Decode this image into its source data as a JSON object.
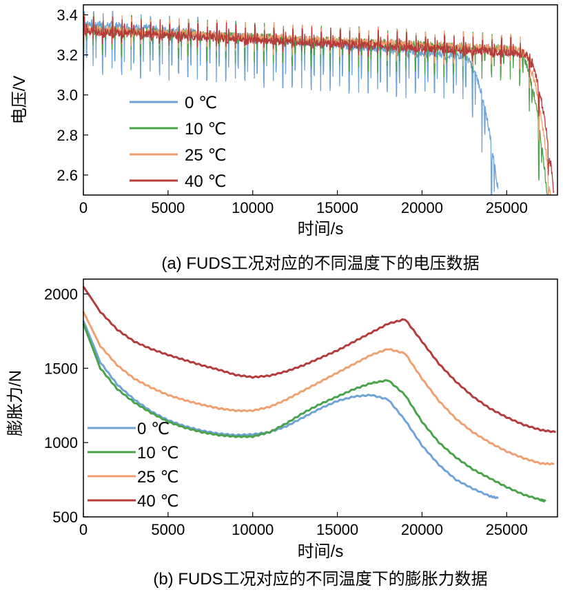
{
  "colors": {
    "s0": "#6fa2d6",
    "s10": "#4aa34a",
    "s25": "#f0a070",
    "s40": "#b53a3a"
  },
  "chart_data": [
    {
      "type": "line",
      "caption": "(a) FUDS工况对应的不同温度下的电压数据",
      "xlabel": "时间/s",
      "ylabel": "电压/V",
      "xlim": [
        0,
        28000
      ],
      "ylim": [
        2.5,
        3.45
      ],
      "xticks": [
        "0",
        "5000",
        "10000",
        "15000",
        "20000",
        "25000"
      ],
      "yticks": [
        "2.6",
        "2.8",
        "3.0",
        "3.2",
        "3.4"
      ],
      "xtick_values": [
        0,
        5000,
        10000,
        15000,
        20000,
        25000
      ],
      "ytick_values": [
        2.6,
        2.8,
        3.0,
        3.2,
        3.4
      ],
      "legend_position": "left",
      "series": [
        {
          "name": "0 ℃",
          "color_key": "s0",
          "end_time": 24500,
          "base_start": 3.36,
          "base_end": 3.18,
          "dip_start": 3.1,
          "dip_end": 2.95,
          "final_drop": 2.52
        },
        {
          "name": "10 ℃",
          "color_key": "s10",
          "end_time": 27400,
          "base_start": 3.33,
          "base_end": 3.22,
          "dip_start": 3.2,
          "dip_end": 3.05,
          "final_drop": 2.5
        },
        {
          "name": "25 ℃",
          "color_key": "s25",
          "end_time": 27600,
          "base_start": 3.33,
          "base_end": 3.22,
          "dip_start": 3.25,
          "dip_end": 3.12,
          "final_drop": 2.5
        },
        {
          "name": "40 ℃",
          "color_key": "s40",
          "end_time": 27800,
          "base_start": 3.32,
          "base_end": 3.2,
          "dip_start": 3.26,
          "dip_end": 3.14,
          "final_drop": 2.5
        }
      ]
    },
    {
      "type": "line",
      "caption": "(b) FUDS工况对应的不同温度下的膨胀力数据",
      "xlabel": "时间/s",
      "ylabel": "膨胀力/N",
      "xlim": [
        0,
        28000
      ],
      "ylim": [
        500,
        2100
      ],
      "xticks": [
        "0",
        "5000",
        "10000",
        "15000",
        "20000",
        "25000"
      ],
      "yticks": [
        "500",
        "1000",
        "1500",
        "2000"
      ],
      "xtick_values": [
        0,
        5000,
        10000,
        15000,
        20000,
        25000
      ],
      "ytick_values": [
        500,
        1000,
        1500,
        2000
      ],
      "legend_position": "bottom-left",
      "series": [
        {
          "name": "0 ℃",
          "color_key": "s0",
          "x": [
            0,
            1000,
            2000,
            3000,
            4000,
            5000,
            6000,
            7000,
            8000,
            9000,
            10000,
            11000,
            12000,
            13000,
            14000,
            15000,
            16000,
            17000,
            18000,
            19000,
            20000,
            21000,
            22000,
            23000,
            24000,
            24500
          ],
          "y": [
            1820,
            1540,
            1390,
            1290,
            1210,
            1150,
            1110,
            1080,
            1060,
            1050,
            1055,
            1070,
            1110,
            1170,
            1230,
            1280,
            1310,
            1320,
            1290,
            1150,
            980,
            850,
            750,
            690,
            640,
            625
          ]
        },
        {
          "name": "10 ℃",
          "color_key": "s10",
          "x": [
            0,
            1000,
            2000,
            3000,
            4000,
            5000,
            6000,
            7000,
            8000,
            9000,
            10000,
            11000,
            12000,
            13000,
            14000,
            15000,
            16000,
            17000,
            18000,
            19000,
            20000,
            21000,
            22000,
            23000,
            24000,
            25000,
            26000,
            27000,
            27300
          ],
          "y": [
            1800,
            1500,
            1360,
            1270,
            1200,
            1140,
            1100,
            1070,
            1050,
            1040,
            1040,
            1070,
            1130,
            1200,
            1260,
            1310,
            1360,
            1400,
            1420,
            1320,
            1140,
            1000,
            900,
            820,
            760,
            700,
            650,
            615,
            605
          ]
        },
        {
          "name": "25 ℃",
          "color_key": "s25",
          "x": [
            0,
            1000,
            2000,
            3000,
            4000,
            5000,
            6000,
            7000,
            8000,
            9000,
            10000,
            11000,
            12000,
            13000,
            14000,
            15000,
            16000,
            17000,
            18000,
            19000,
            20000,
            21000,
            22000,
            23000,
            24000,
            25000,
            26000,
            27000,
            27800
          ],
          "y": [
            1880,
            1650,
            1520,
            1430,
            1370,
            1320,
            1285,
            1255,
            1230,
            1215,
            1215,
            1240,
            1290,
            1350,
            1410,
            1470,
            1530,
            1590,
            1630,
            1600,
            1430,
            1280,
            1160,
            1070,
            1000,
            940,
            895,
            860,
            855
          ]
        },
        {
          "name": "40 ℃",
          "color_key": "s40",
          "x": [
            0,
            1000,
            2000,
            3000,
            4000,
            5000,
            6000,
            7000,
            8000,
            9000,
            10000,
            11000,
            12000,
            13000,
            14000,
            15000,
            16000,
            17000,
            18000,
            19000,
            20000,
            21000,
            22000,
            23000,
            24000,
            25000,
            26000,
            27000,
            27900
          ],
          "y": [
            2050,
            1880,
            1760,
            1680,
            1630,
            1590,
            1555,
            1520,
            1490,
            1455,
            1440,
            1450,
            1480,
            1520,
            1570,
            1620,
            1680,
            1740,
            1800,
            1830,
            1680,
            1530,
            1410,
            1310,
            1230,
            1170,
            1120,
            1085,
            1070
          ]
        }
      ]
    }
  ]
}
